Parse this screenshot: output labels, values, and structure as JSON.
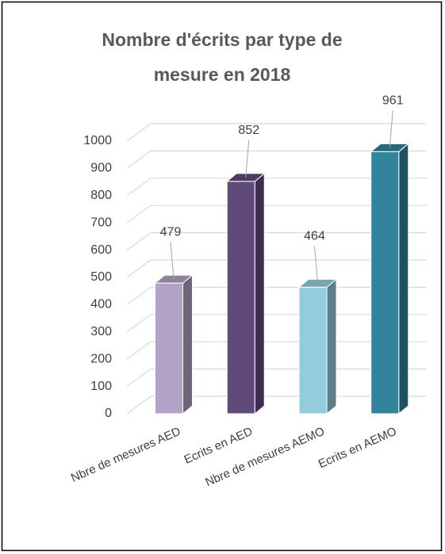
{
  "chart_data": {
    "type": "bar3d",
    "title": [
      "Nombre d'écrits par type de",
      "mesure en 2018"
    ],
    "categories": [
      "Nbre de mesures AED",
      "Ecrits en AED",
      "Nbre de mesures AEMO",
      "Ecrits en AEMO"
    ],
    "values": [
      479,
      852,
      464,
      961
    ],
    "colors": [
      "#b3a2c7",
      "#604a7b",
      "#93cddd",
      "#31849b"
    ],
    "ylim": [
      0,
      1000
    ],
    "yticks": [
      0,
      100,
      200,
      300,
      400,
      500,
      600,
      700,
      800,
      900,
      1000
    ],
    "grid": true
  }
}
